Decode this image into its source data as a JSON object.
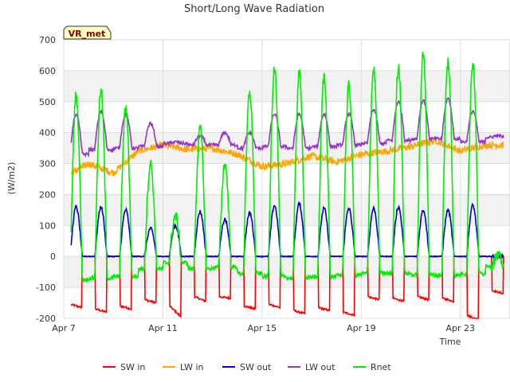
{
  "chart_data": {
    "type": "line",
    "title": "Short/Long Wave Radiation",
    "xlabel": "Time",
    "ylabel": "(W/m2)",
    "site_label": "VR_met",
    "ylim": [
      -200,
      700
    ],
    "yticks": [
      -200,
      -100,
      0,
      100,
      200,
      300,
      400,
      500,
      600,
      700
    ],
    "xlim": [
      7.0,
      25.0
    ],
    "xticks": [
      {
        "label": "Apr 7",
        "day": 7
      },
      {
        "label": "Apr 11",
        "day": 11
      },
      {
        "label": "Apr 15",
        "day": 15
      },
      {
        "label": "Apr 19",
        "day": 19
      },
      {
        "label": "Apr 23",
        "day": 23
      }
    ],
    "grid": true,
    "legend_position": "bottom",
    "days": [
      7.5,
      8.5,
      9.5,
      10.5,
      11.5,
      12.5,
      13.5,
      14.5,
      15.5,
      16.5,
      17.5,
      18.5,
      19.5,
      20.5,
      21.5,
      22.5,
      23.5,
      24.5
    ],
    "data_x_range": [
      7.3,
      24.75
    ],
    "series": [
      {
        "name": "SW in",
        "color": "#ff0000",
        "peaks": [
          -165,
          -180,
          -170,
          -150,
          -195,
          -145,
          -135,
          -170,
          -165,
          -185,
          -175,
          -190,
          -140,
          -145,
          -140,
          -145,
          -205,
          -120
        ],
        "day_values": [
          -155,
          -170,
          -160,
          -140,
          -160,
          -130,
          -130,
          -160,
          -155,
          -175,
          -165,
          -180,
          -130,
          -135,
          -130,
          -135,
          -190,
          -110
        ]
      },
      {
        "name": "LW in",
        "color": "#ffa500",
        "day_values": [
          255,
          300,
          270,
          340,
          360,
          345,
          350,
          330,
          290,
          300,
          325,
          305,
          330,
          340,
          355,
          375,
          340,
          360
        ]
      },
      {
        "name": "SW out",
        "color": "#0000cc",
        "peaks": [
          160,
          160,
          150,
          90,
          100,
          145,
          120,
          140,
          165,
          170,
          155,
          155,
          155,
          160,
          150,
          150,
          165,
          0
        ]
      },
      {
        "name": "LW out",
        "color": "#9932cc",
        "peaks": [
          460,
          470,
          460,
          430,
          370,
          390,
          400,
          400,
          460,
          460,
          460,
          460,
          475,
          500,
          505,
          510,
          470,
          390
        ],
        "base": [
          330,
          345,
          350,
          355,
          365,
          360,
          360,
          350,
          355,
          350,
          355,
          360,
          365,
          375,
          380,
          380,
          370,
          385
        ]
      },
      {
        "name": "Rnet",
        "color": "#00ee00",
        "peaks": [
          520,
          535,
          480,
          300,
          130,
          410,
          300,
          530,
          610,
          590,
          580,
          550,
          605,
          615,
          650,
          630,
          625,
          0
        ],
        "night": [
          -75,
          -70,
          -65,
          -40,
          -20,
          -40,
          -35,
          -55,
          -65,
          -70,
          -65,
          -60,
          -55,
          -55,
          -60,
          -60,
          -55,
          -30
        ]
      }
    ]
  }
}
